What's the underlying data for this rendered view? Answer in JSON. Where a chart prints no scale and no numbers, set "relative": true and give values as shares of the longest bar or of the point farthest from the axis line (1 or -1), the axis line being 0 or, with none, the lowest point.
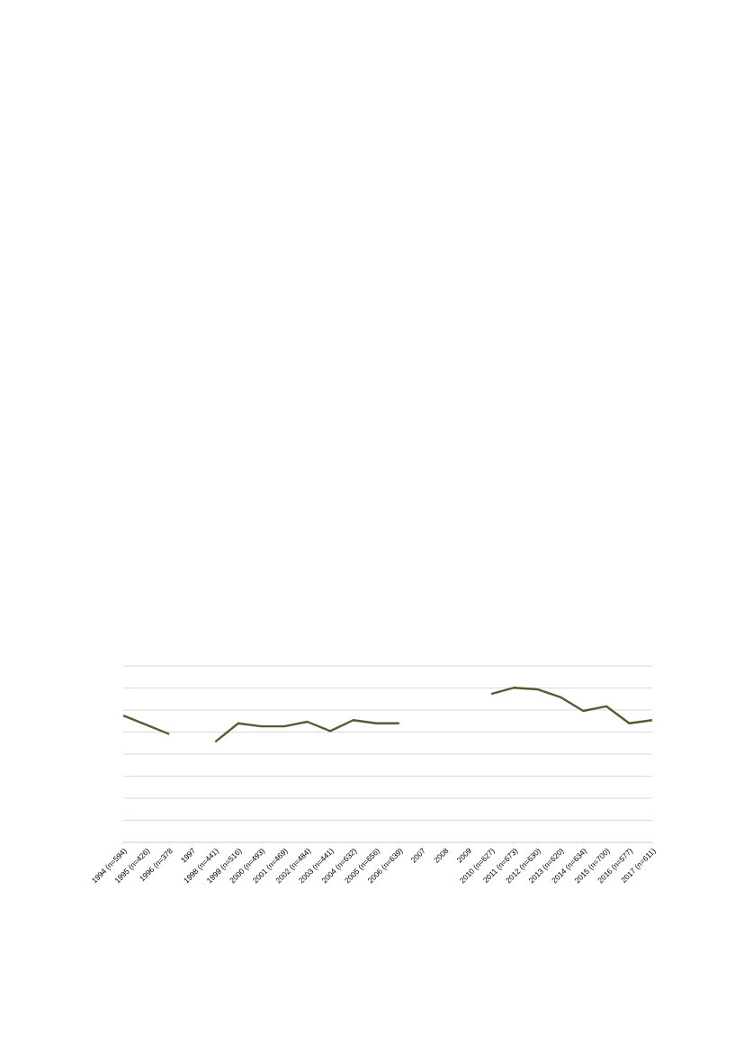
{
  "chart_data": {
    "type": "line",
    "relative": true,
    "grid": "y",
    "marker": "none",
    "line_style": "solid",
    "categories": [
      "1994 (n=594)",
      "1995 (n=426)",
      "1996 (n=378",
      "1997",
      "1998 (n=441)",
      "1999 (n=516)",
      "2000 (n=493)",
      "2001 (n=469)",
      "2002 (n=484)",
      "2003 (n=441)",
      "2004 (n=632)",
      "2005 (n=656)",
      "2006 (n=639)",
      "2007",
      "2008",
      "2009",
      "2010 (n=627)",
      "2011 (n=673)",
      "2012 (n=630)",
      "2013 (n=620)",
      "2014 (n=634)",
      "2015 (n=700)",
      "2016 (n=577)",
      "2017 (n=611)"
    ],
    "series": [
      {
        "color": "#4f5f2f",
        "values": [
          0.82,
          0.76,
          0.7,
          null,
          0.65,
          0.77,
          0.75,
          0.75,
          0.78,
          0.72,
          0.79,
          0.77,
          0.77,
          null,
          null,
          null,
          0.96,
          1.0,
          0.99,
          0.94,
          0.85,
          0.88,
          0.77,
          0.79
        ]
      }
    ]
  }
}
